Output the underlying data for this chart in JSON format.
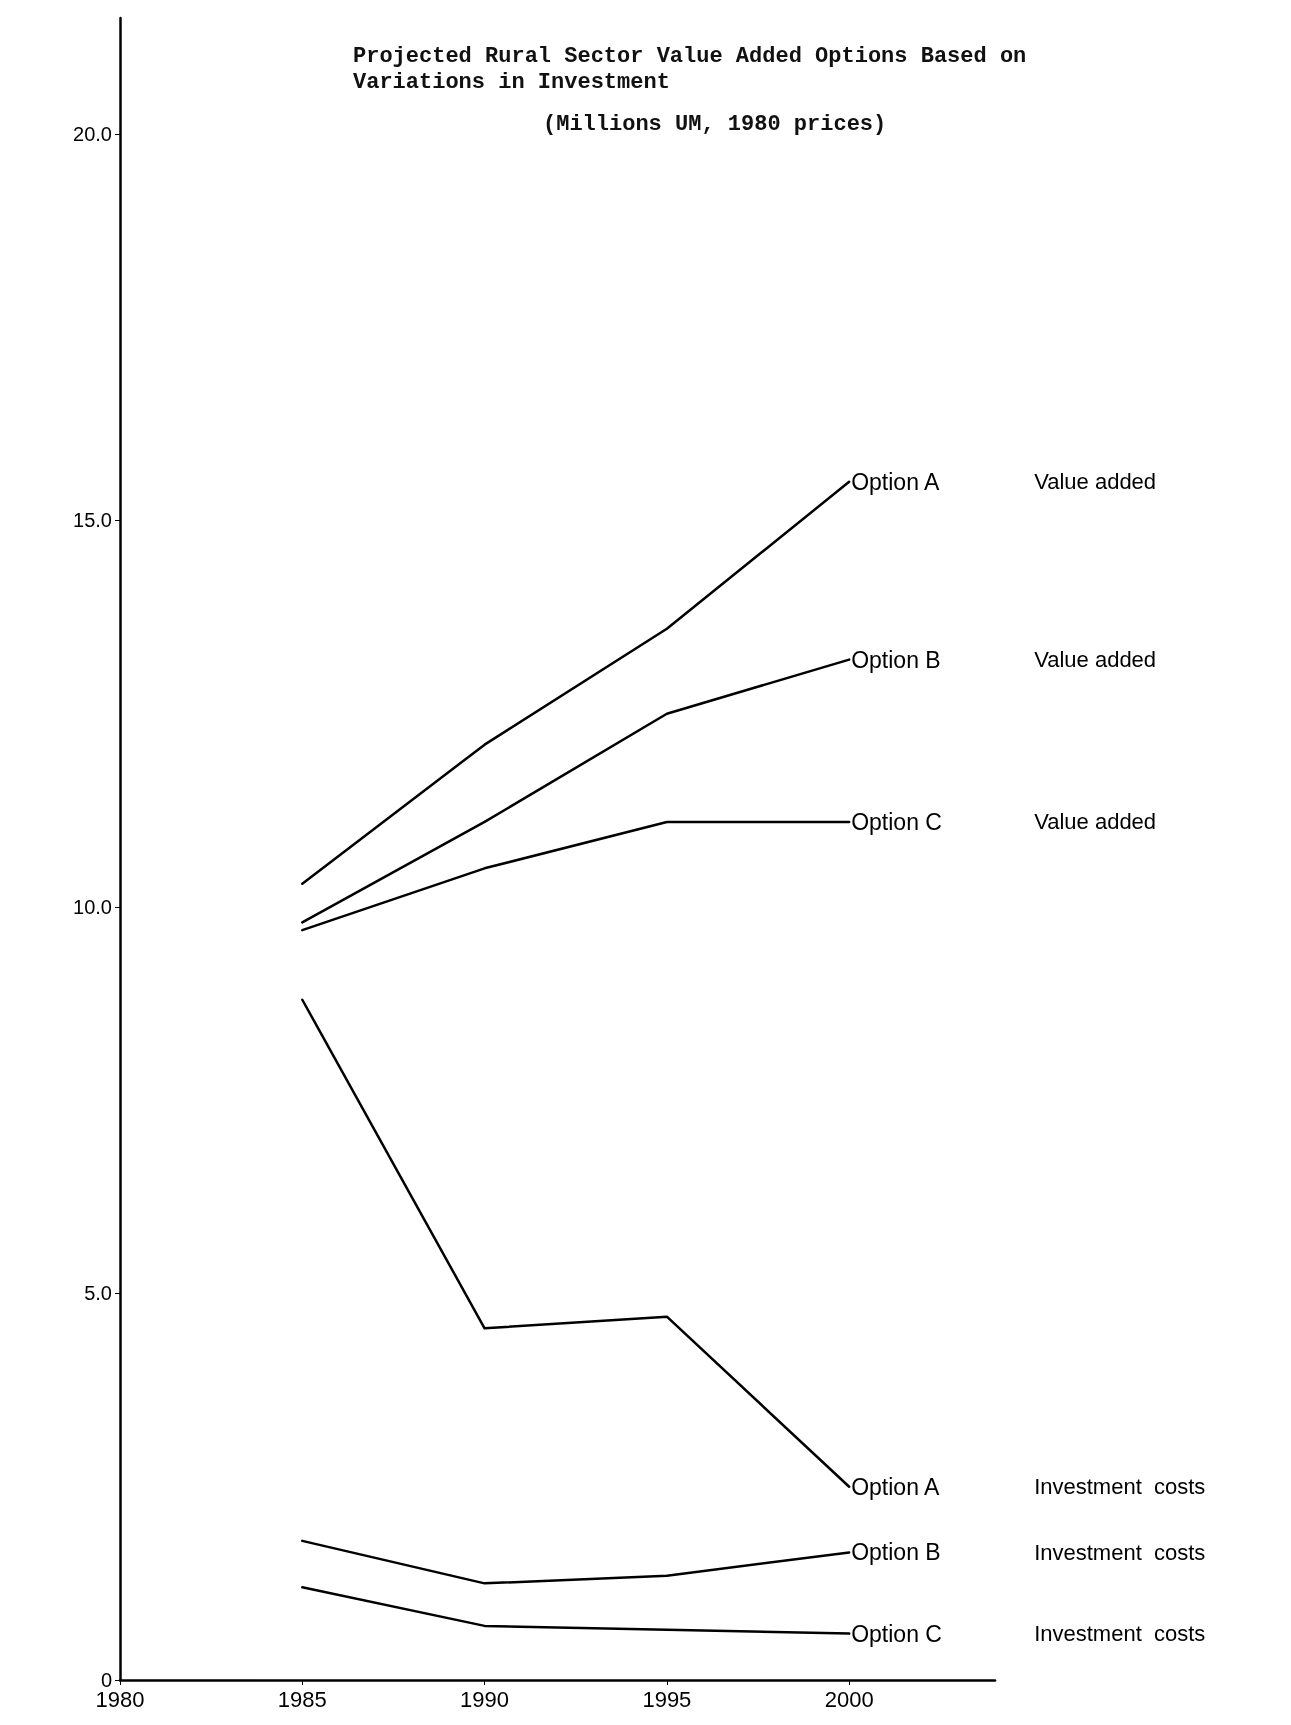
{
  "chart_data": {
    "type": "line",
    "title": "Projected Rural Sector Value Added Options Based on Variations in Investment",
    "subtitle": "(Millions UM, 1980 prices)",
    "x": [
      1985,
      1990,
      1995,
      2000
    ],
    "xlim": [
      1980,
      2004
    ],
    "xticks": [
      1980,
      1985,
      1990,
      1995,
      2000
    ],
    "ylim": [
      0,
      21.5
    ],
    "yticks": [
      0,
      {
        "value": 5,
        "label": "5.0"
      },
      {
        "value": 10,
        "label": "10.0"
      },
      {
        "value": 15,
        "label": "15.0"
      },
      {
        "value": 20,
        "label": "20.0"
      }
    ],
    "series": [
      {
        "name": "Option A",
        "color": "#000000",
        "values": [
          10.3,
          12.1,
          13.6,
          15.5
        ]
      },
      {
        "name": "Option B",
        "color": "#000000",
        "values": [
          9.8,
          11.1,
          12.5,
          13.2
        ]
      },
      {
        "name": "Option C",
        "color": "#000000",
        "values": [
          9.7,
          10.5,
          11.1,
          11.1
        ]
      },
      {
        "name": "Option A",
        "color": "#000000",
        "values": [
          8.8,
          4.55,
          4.7,
          2.5
        ]
      },
      {
        "name": "Option B",
        "color": "#000000",
        "values": [
          1.8,
          1.25,
          1.35,
          1.65
        ]
      },
      {
        "name": "Option C",
        "color": "#000000",
        "values": [
          1.2,
          0.7,
          0.65,
          0.6
        ]
      }
    ],
    "annotations": [
      "Value added",
      "Value added",
      "Value added",
      "Investment  costs",
      "Investment  costs",
      "Investment  costs"
    ],
    "grid": false,
    "legend": false,
    "marker": "none",
    "line_style": "solid"
  }
}
